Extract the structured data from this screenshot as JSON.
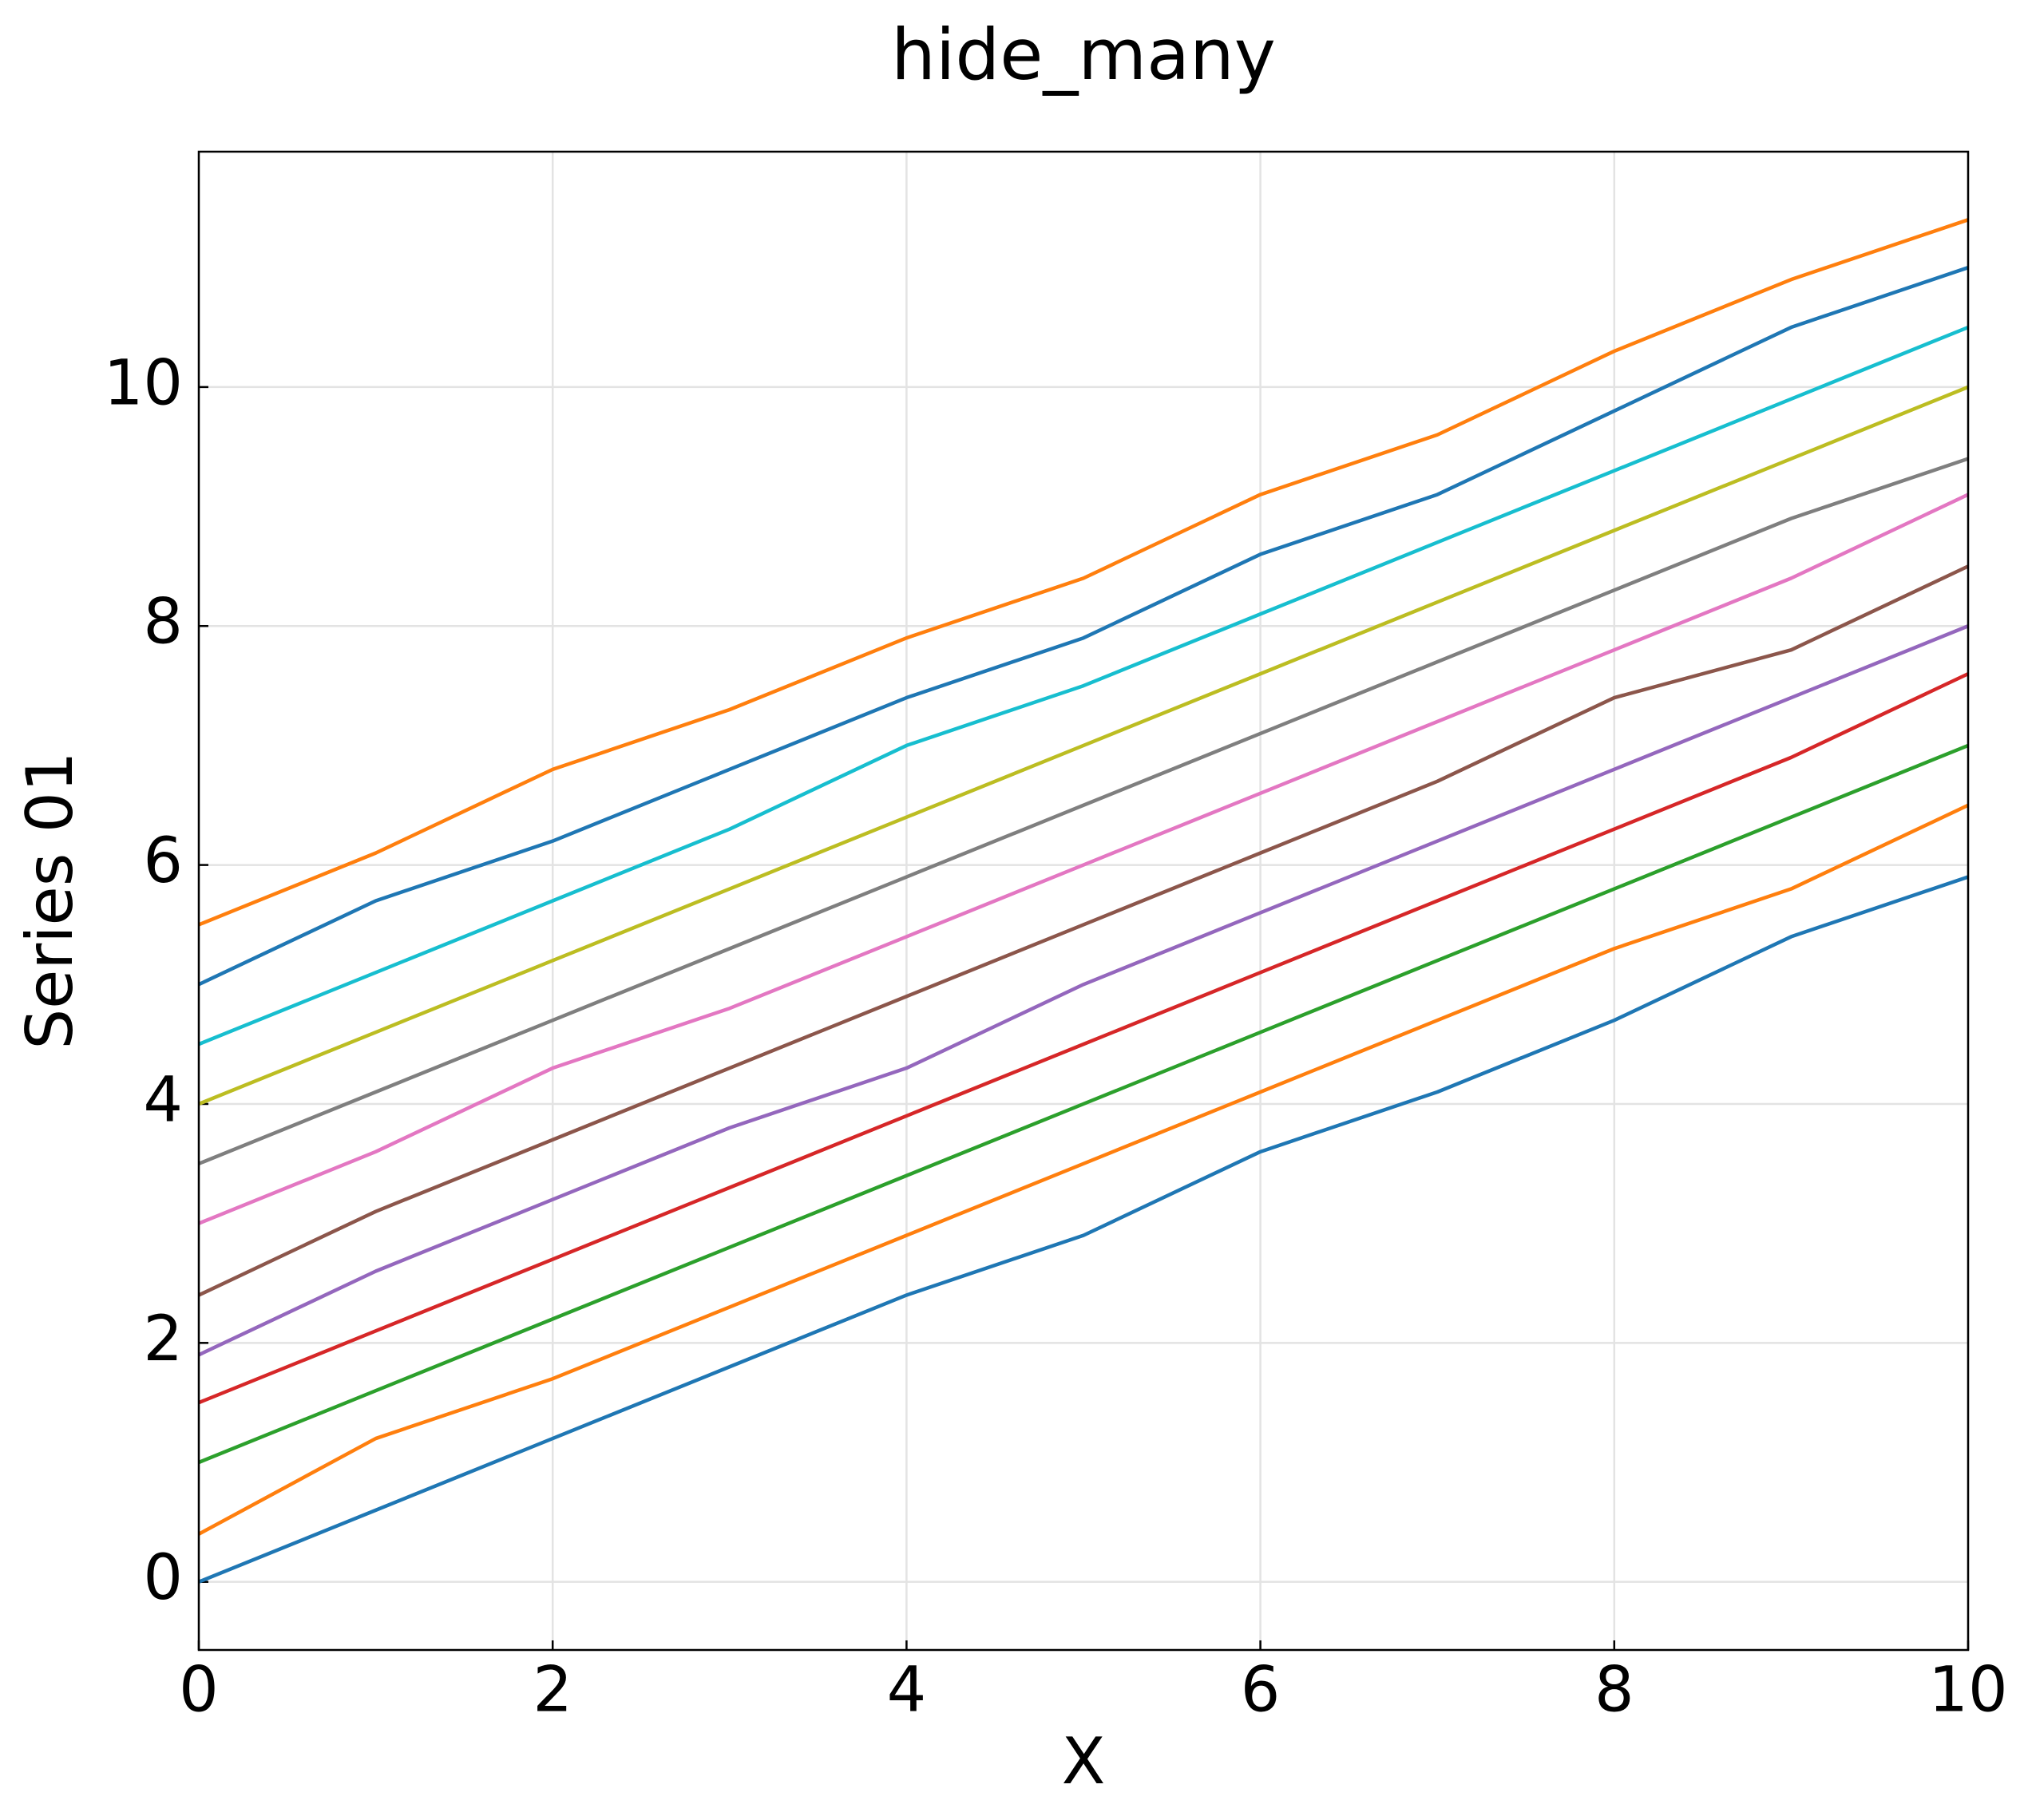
{
  "chart_data": {
    "type": "line",
    "title": "hide_many",
    "x_label": "X",
    "y_label": "Series 01",
    "x": [
      0,
      1,
      2,
      3,
      4,
      5,
      6,
      7,
      8,
      9,
      10
    ],
    "series": [
      {
        "color": "#1f77b4",
        "values": [
          0,
          0.6,
          1.2,
          1.8,
          2.4,
          2.9,
          3.6,
          4.1,
          4.7,
          5.4,
          5.9
        ]
      },
      {
        "color": "#ff7f0e",
        "values": [
          0.4,
          1.2,
          1.7,
          2.3,
          2.9,
          3.5,
          4.1,
          4.7,
          5.3,
          5.8,
          6.5
        ]
      },
      {
        "color": "#2ca02c",
        "values": [
          1.0,
          1.6,
          2.2,
          2.8,
          3.4,
          4.0,
          4.6,
          5.2,
          5.8,
          6.4,
          7.0
        ]
      },
      {
        "color": "#d62728",
        "values": [
          1.5,
          2.1,
          2.7,
          3.3,
          3.9,
          4.5,
          5.1,
          5.7,
          6.3,
          6.9,
          7.6
        ]
      },
      {
        "color": "#9467bd",
        "values": [
          1.9,
          2.6,
          3.2,
          3.8,
          4.3,
          5.0,
          5.6,
          6.2,
          6.8,
          7.4,
          8.0
        ]
      },
      {
        "color": "#8c564b",
        "values": [
          2.4,
          3.1,
          3.7,
          4.3,
          4.9,
          5.5,
          6.1,
          6.7,
          7.4,
          7.8,
          8.5
        ]
      },
      {
        "color": "#e377c2",
        "values": [
          3.0,
          3.6,
          4.3,
          4.8,
          5.4,
          6.0,
          6.6,
          7.2,
          7.8,
          8.4,
          9.1
        ]
      },
      {
        "color": "#7f7f7f",
        "values": [
          3.5,
          4.1,
          4.7,
          5.3,
          5.9,
          6.5,
          7.1,
          7.7,
          8.3,
          8.9,
          9.4
        ]
      },
      {
        "color": "#bcbd22",
        "values": [
          4.0,
          4.6,
          5.2,
          5.8,
          6.4,
          7.0,
          7.6,
          8.2,
          8.8,
          9.4,
          10.0
        ]
      },
      {
        "color": "#17becf",
        "values": [
          4.5,
          5.1,
          5.7,
          6.3,
          7.0,
          7.5,
          8.1,
          8.7,
          9.3,
          9.9,
          10.5
        ]
      },
      {
        "color": "#1f77b4",
        "values": [
          5.0,
          5.7,
          6.2,
          6.8,
          7.4,
          7.9,
          8.6,
          9.1,
          9.8,
          10.5,
          11.0
        ]
      },
      {
        "color": "#ff7f0e",
        "values": [
          5.5,
          6.1,
          6.8,
          7.3,
          7.9,
          8.4,
          9.1,
          9.6,
          10.3,
          10.9,
          11.4
        ]
      }
    ],
    "xlim": [
      0,
      10
    ],
    "xticks": [
      0,
      2,
      4,
      6,
      8,
      10
    ],
    "ylim": [
      -0.57,
      11.97
    ],
    "yticks": [
      0,
      2,
      4,
      6,
      8,
      10
    ],
    "grid": true
  }
}
